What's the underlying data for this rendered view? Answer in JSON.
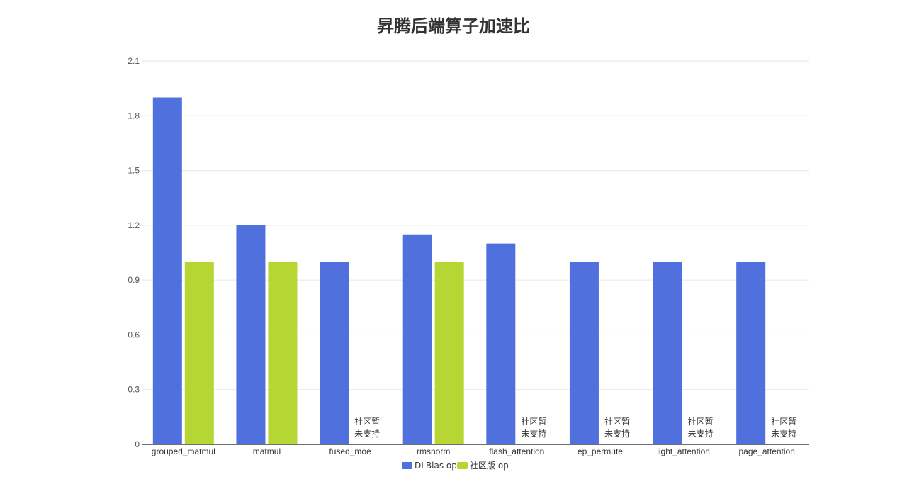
{
  "chart_data": {
    "type": "bar",
    "title": "昇腾后端算子加速比",
    "categories": [
      "grouped_matmul",
      "matmul",
      "fused_moe",
      "rmsnorm",
      "flash_attention",
      "ep_permute",
      "light_attention",
      "page_attention"
    ],
    "series": [
      {
        "name": "DLBlas op",
        "color": "#5070dd",
        "values": [
          1.9,
          1.2,
          1.0,
          1.15,
          1.1,
          1.0,
          1.0,
          1.0
        ]
      },
      {
        "name": "社区版 op",
        "color": "#b6d634",
        "values": [
          1.0,
          1.0,
          null,
          1.0,
          null,
          null,
          null,
          null
        ]
      }
    ],
    "missing_label": [
      "社区暂",
      "未支持"
    ],
    "ylim": [
      0,
      2.1
    ],
    "yticks": [
      "0",
      "0.3",
      "0.6",
      "0.9",
      "1.2",
      "1.5",
      "1.8",
      "2.1"
    ],
    "grid": true,
    "legend_position": "bottom-center"
  }
}
